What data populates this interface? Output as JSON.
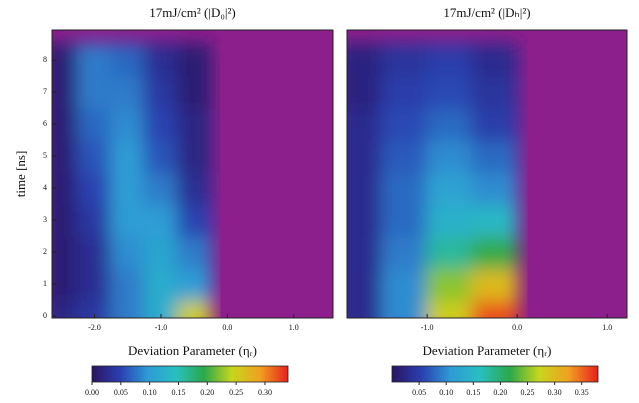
{
  "chart_data": [
    {
      "type": "heatmap",
      "title": "17mJ/cm² (|D₀|²)",
      "xlabel": "Deviation Parameter (ηᵣ)",
      "ylabel": "time [ns]",
      "xlim": [
        -2.64,
        1.59
      ],
      "ylim": [
        -0.06,
        8.95
      ],
      "xticks": [
        {
          "value": -2,
          "label": "-2.0"
        },
        {
          "value": -1,
          "label": "-1.0"
        },
        {
          "value": 0,
          "label": "0.0"
        },
        {
          "value": 1,
          "label": "1.0"
        }
      ],
      "yticks": [
        0,
        1,
        2,
        3,
        4,
        5,
        6,
        7,
        8
      ],
      "x": [
        -2.5,
        -2.0,
        -1.5,
        -1.0,
        -0.5,
        0.0,
        0.5,
        1.0,
        1.5
      ],
      "y": [
        0,
        1,
        2,
        3,
        4,
        5,
        6,
        7,
        8
      ],
      "z": [
        [
          0.02,
          0.04,
          0.08,
          0.12,
          0.25,
          null,
          null,
          null,
          null
        ],
        [
          0.01,
          0.03,
          0.08,
          0.12,
          0.1,
          null,
          null,
          null,
          null
        ],
        [
          0.01,
          0.03,
          0.09,
          0.11,
          0.08,
          null,
          null,
          null,
          null
        ],
        [
          0.01,
          0.04,
          0.1,
          0.1,
          0.05,
          null,
          null,
          null,
          null
        ],
        [
          0.01,
          0.05,
          0.1,
          0.08,
          0.03,
          null,
          null,
          null,
          null
        ],
        [
          0.01,
          0.06,
          0.1,
          0.06,
          0.02,
          null,
          null,
          null,
          null
        ],
        [
          0.01,
          0.07,
          0.09,
          0.05,
          0.02,
          null,
          null,
          null,
          null
        ],
        [
          0.01,
          0.08,
          0.08,
          0.04,
          0.01,
          null,
          null,
          null,
          null
        ],
        [
          0.01,
          0.08,
          0.07,
          0.03,
          0.01,
          null,
          null,
          null,
          null
        ]
      ],
      "mask_color": "#8c1f8c",
      "colormap": [
        "#2a1463",
        "#2a3fb0",
        "#2e9bd6",
        "#28c0c0",
        "#2ba84a",
        "#c8d61e",
        "#f0a020",
        "#e8201c"
      ],
      "colorbar": {
        "lim": [
          0,
          0.34
        ],
        "ticks": [
          {
            "value": 0,
            "label": "0.00"
          },
          {
            "value": 0.05,
            "label": "0.05"
          },
          {
            "value": 0.1,
            "label": "0.10"
          },
          {
            "value": 0.15,
            "label": "0.15"
          },
          {
            "value": 0.2,
            "label": "0.20"
          },
          {
            "value": 0.25,
            "label": "0.25"
          },
          {
            "value": 0.3,
            "label": "0.30"
          }
        ]
      }
    },
    {
      "type": "heatmap",
      "title": "17mJ/cm² (|Dₕ|²)",
      "xlabel": "Deviation Parameter (ηᵣ)",
      "xlim": [
        -1.89,
        1.22
      ],
      "ylim": [
        -0.06,
        8.95
      ],
      "xticks": [
        {
          "value": -1,
          "label": "-1.0"
        },
        {
          "value": 0,
          "label": "0.0"
        },
        {
          "value": 1,
          "label": "1.0"
        }
      ],
      "x": [
        -1.75,
        -1.25,
        -0.75,
        -0.25,
        0.25,
        0.75,
        1.25
      ],
      "y": [
        0,
        1,
        2,
        3,
        4,
        5,
        6,
        7,
        8
      ],
      "z": [
        [
          0.03,
          0.1,
          0.28,
          0.36,
          null,
          null,
          null
        ],
        [
          0.03,
          0.1,
          0.25,
          0.3,
          null,
          null,
          null
        ],
        [
          0.03,
          0.09,
          0.18,
          0.22,
          null,
          null,
          null
        ],
        [
          0.03,
          0.08,
          0.14,
          0.15,
          null,
          null,
          null
        ],
        [
          0.03,
          0.08,
          0.12,
          0.1,
          null,
          null,
          null
        ],
        [
          0.03,
          0.07,
          0.1,
          0.08,
          null,
          null,
          null
        ],
        [
          0.03,
          0.06,
          0.08,
          0.05,
          null,
          null,
          null
        ],
        [
          0.02,
          0.05,
          0.06,
          0.04,
          null,
          null,
          null
        ],
        [
          0.02,
          0.04,
          0.05,
          0.03,
          null,
          null,
          null
        ]
      ],
      "mask_color": "#8c1f8c",
      "colormap": [
        "#2a1463",
        "#2a3fb0",
        "#2e9bd6",
        "#28c0c0",
        "#2ba84a",
        "#c8d61e",
        "#f0a020",
        "#e8201c"
      ],
      "colorbar": {
        "lim": [
          0,
          0.38
        ],
        "ticks": [
          {
            "value": 0.05,
            "label": "0.05"
          },
          {
            "value": 0.1,
            "label": "0.10"
          },
          {
            "value": 0.15,
            "label": "0.15"
          },
          {
            "value": 0.2,
            "label": "0.20"
          },
          {
            "value": 0.25,
            "label": "0.25"
          },
          {
            "value": 0.3,
            "label": "0.30"
          },
          {
            "value": 0.35,
            "label": "0.35"
          }
        ]
      }
    }
  ]
}
